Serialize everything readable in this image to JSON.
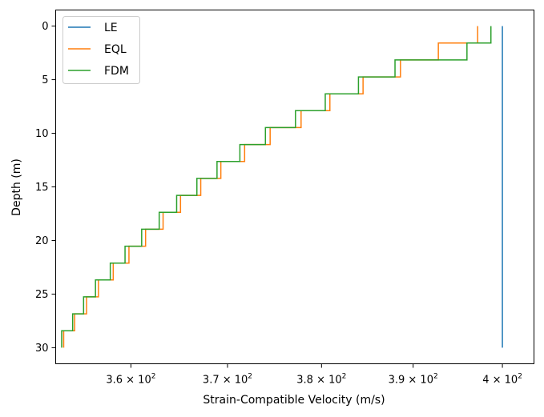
{
  "chart_data": {
    "type": "line",
    "title": "",
    "xlabel": "Strain-Compatible Velocity (m/s)",
    "ylabel": "Depth (m)",
    "x_scale": "log",
    "xlim": [
      352.4,
      403.6
    ],
    "ylim": [
      31.5,
      -1.5
    ],
    "y_inverted": true,
    "grid": false,
    "legend_position": "upper-left",
    "x_ticks": [
      {
        "value": 360,
        "base": "3.6",
        "exp": "2"
      },
      {
        "value": 370,
        "base": "3.7",
        "exp": "2"
      },
      {
        "value": 380,
        "base": "3.8",
        "exp": "2"
      },
      {
        "value": 390,
        "base": "3.9",
        "exp": "2"
      },
      {
        "value": 400,
        "base": "4",
        "exp": "2"
      }
    ],
    "y_ticks": [
      0,
      5,
      10,
      15,
      20,
      25,
      30
    ],
    "series": [
      {
        "name": "LE",
        "color": "#1f77b4",
        "step_depths": [
          0,
          30
        ],
        "velocities": [
          400
        ]
      },
      {
        "name": "EQL",
        "color": "#ff7f0e",
        "step_depths": [
          0,
          1.58,
          3.16,
          4.74,
          6.32,
          7.89,
          9.47,
          11.05,
          12.63,
          14.21,
          15.79,
          17.37,
          18.95,
          20.53,
          22.11,
          23.68,
          25.26,
          26.84,
          28.42,
          30
        ],
        "velocities": [
          397.2,
          392.8,
          388.6,
          384.5,
          380.9,
          377.8,
          374.5,
          371.8,
          369.3,
          367.2,
          365.1,
          363.3,
          361.5,
          359.8,
          358.2,
          356.7,
          355.5,
          354.3,
          353.2
        ]
      },
      {
        "name": "FDM",
        "color": "#2ca02c",
        "step_depths": [
          0,
          1.58,
          3.16,
          4.74,
          6.32,
          7.89,
          9.47,
          11.05,
          12.63,
          14.21,
          15.79,
          17.37,
          18.95,
          20.53,
          22.11,
          23.68,
          25.26,
          26.84,
          28.42,
          30
        ],
        "velocities": [
          398.7,
          396.0,
          388.0,
          384.0,
          380.4,
          377.2,
          374.0,
          371.3,
          368.9,
          366.8,
          364.7,
          362.9,
          361.1,
          359.4,
          357.9,
          356.4,
          355.2,
          354.1,
          353.0
        ]
      }
    ]
  }
}
